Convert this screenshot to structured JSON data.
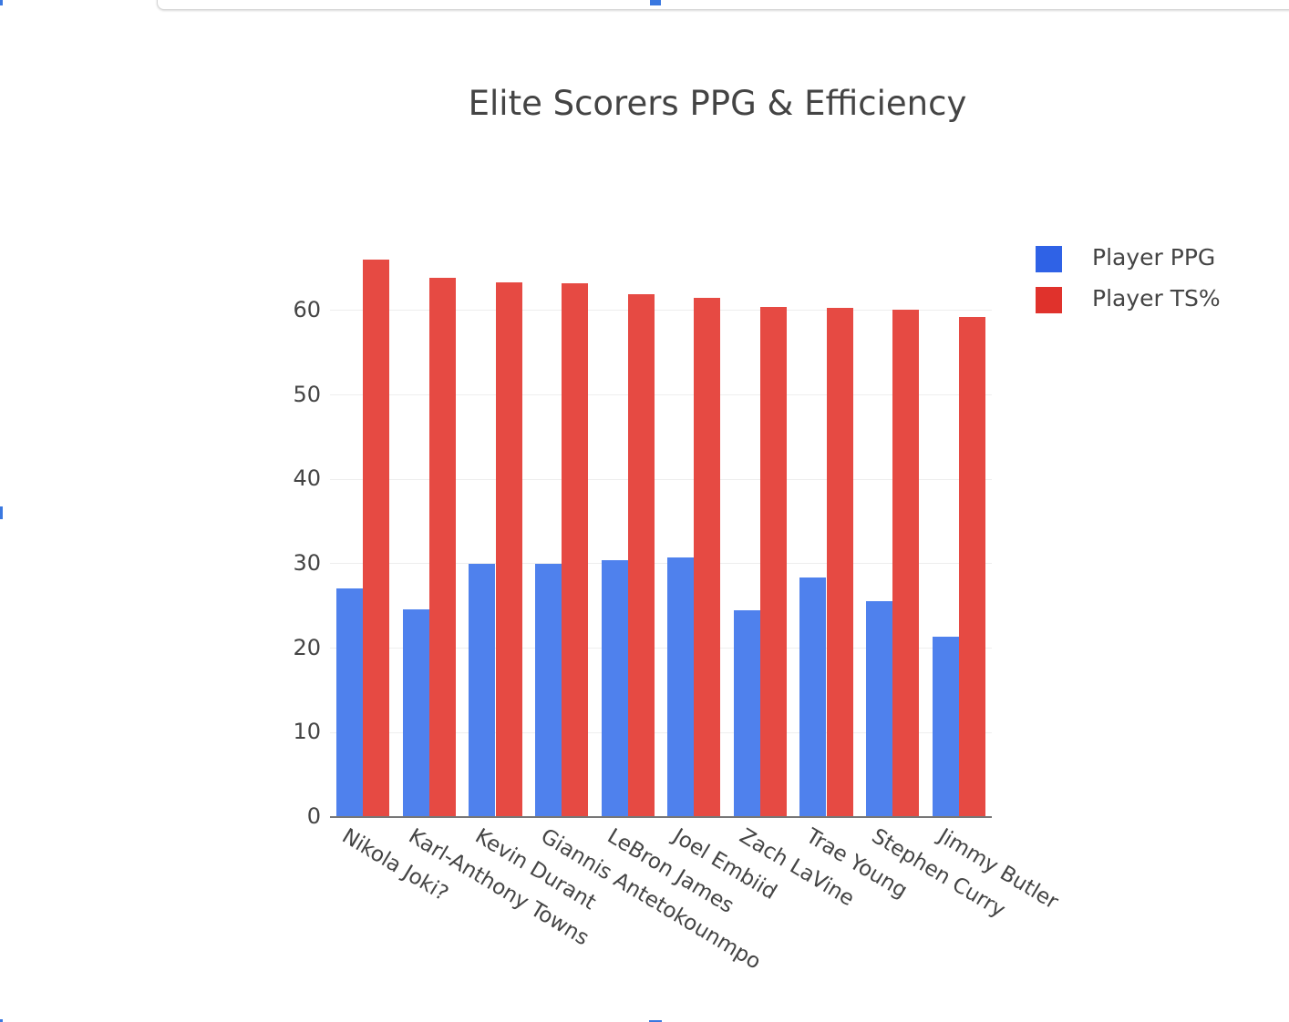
{
  "chart_data": {
    "type": "bar",
    "title": "Elite Scorers PPG & Efficiency",
    "xlabel": "",
    "ylabel": "",
    "categories": [
      "Nikola Joki?",
      "Karl-Anthony Towns",
      "Kevin Durant",
      "Giannis Antetokounmpo",
      "LeBron James",
      "Joel Embiid",
      "Zach LaVine",
      "Trae Young",
      "Stephen Curry",
      "Jimmy Butler"
    ],
    "series": [
      {
        "name": "Player PPG",
        "color": "#4f81ed",
        "values": [
          27.1,
          24.6,
          30.0,
          30.0,
          30.4,
          30.7,
          24.5,
          28.4,
          25.6,
          21.4
        ]
      },
      {
        "name": "Player TS%",
        "color": "#e64a43",
        "values": [
          66.0,
          63.9,
          63.3,
          63.2,
          61.9,
          61.5,
          60.4,
          60.3,
          60.1,
          59.2
        ]
      }
    ],
    "yticks": [
      0,
      10,
      20,
      30,
      40,
      50,
      60
    ],
    "ylim": [
      0,
      70.8
    ],
    "grid": true,
    "legend_position": "right-top",
    "barmode": "group",
    "xtick_rotation": 31
  },
  "chart": {
    "title": "Elite Scorers PPG & Efficiency",
    "legend": [
      {
        "label": "Player PPG",
        "color": "#2f62e6"
      },
      {
        "label": "Player TS%",
        "color": "#e0322c"
      }
    ]
  }
}
